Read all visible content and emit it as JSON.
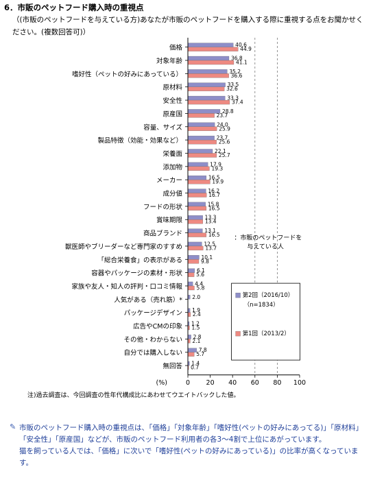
{
  "heading": "6．市販のペットフード購入時の重視点",
  "question": "（(市販のペットフードを与えている方)あなたが市販のペットフードを購入する際に重視する点をお聞かせください。(複数回答可)）",
  "footnote": "注)過去調査は、今回調査の性年代構成比にあわせてウエイトバックした値。",
  "summary": [
    "市販のペットフード購入時の重視点は、「価格」「対象年齢」「嗜好性(ペットの好みにあってる)」「原材料」「安全性」「原産国」などが、市販のペットフード利用者の各3～4割で上位にあがっています。",
    "猫を飼っている人では、「価格」に次いで「嗜好性(ペットの好みにあっている)」の比率が高くなっています。"
  ],
  "chart_data": {
    "type": "bar",
    "orientation": "horizontal",
    "categories": [
      "価格",
      "対象年齢",
      "嗜好性（ペットの好みにあっている）",
      "原材料",
      "安全性",
      "原産国",
      "容量、サイズ",
      "製品特徴（効能・効果など）",
      "栄養面",
      "添加物",
      "メーカー",
      "成分値",
      "フードの形状",
      "賞味期限",
      "商品ブランド",
      "獣医師やブリーダーなど専門家のすすめ",
      "「総合栄養食」の表示がある",
      "容器やパッケージの素材・形状",
      "家族や友人・知人の評判・口コミ情報",
      "人気がある（売れ筋）*",
      "パッケージデザイン",
      "広告やCMの印象",
      "その他・わからない",
      "自分では購入しない",
      "無回答"
    ],
    "series": [
      {
        "name": "第2回（2016/10）(n=1834)",
        "color": "#8e8ec8",
        "values": [
          40.6,
          36.8,
          35.2,
          33.5,
          33.3,
          28.8,
          24.0,
          23.7,
          22.1,
          17.9,
          16.5,
          16.2,
          15.8,
          13.3,
          13.1,
          12.5,
          10.1,
          6.1,
          4.4,
          2.0,
          1.9,
          1.2,
          2.8,
          7.8,
          1.4
        ]
      },
      {
        "name": "第1回（2013/2）",
        "color": "#ee8a82",
        "values": [
          44.9,
          41.1,
          36.6,
          32.6,
          37.4,
          23.7,
          25.9,
          25.6,
          25.7,
          19.3,
          19.9,
          16.7,
          16.5,
          13.4,
          16.5,
          13.7,
          9.8,
          5.6,
          5.8,
          null,
          2.4,
          1.5,
          2.1,
          5.7,
          0.7
        ]
      }
    ],
    "xlim": [
      0,
      100
    ],
    "xticks": [
      0,
      20,
      40,
      60,
      80,
      100
    ],
    "unit_label": "(%)",
    "box_label": "：市販のペットフードを与えている人",
    "grid": "dashed vertical at 60 and 80"
  }
}
